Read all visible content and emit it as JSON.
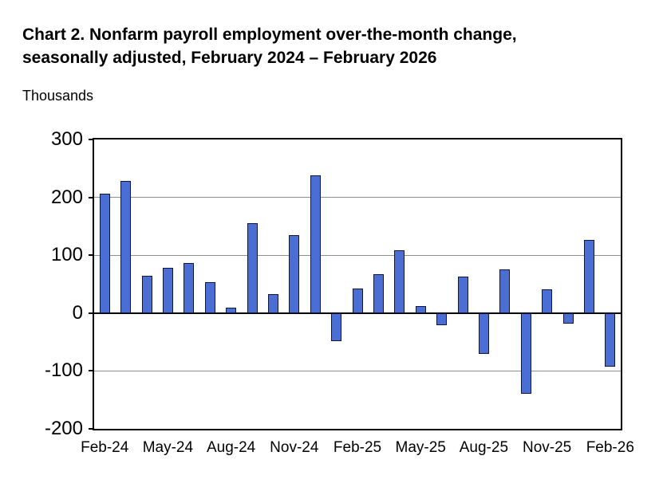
{
  "page": {
    "background_color": "#ffffff"
  },
  "chart_data": {
    "type": "bar",
    "title": "Chart 2. Nonfarm payroll employment over-the-month change, seasonally adjusted, February 2024 – February 2026",
    "title_lines": [
      "Chart 2. Nonfarm payroll employment over-the-month change,",
      "seasonally adjusted, February 2024 – February 2026"
    ],
    "ylabel": "Thousands",
    "xlabel": "",
    "ylim": [
      -200,
      300
    ],
    "yticks": [
      300,
      200,
      100,
      0,
      -100,
      -200
    ],
    "x_tick_step": 3,
    "x_tick_labels_shown": [
      "Feb-24",
      "May-24",
      "Aug-24",
      "Nov-24",
      "Feb-25",
      "May-25",
      "Aug-25",
      "Nov-25",
      "Feb-26"
    ],
    "categories": [
      "Feb-24",
      "Mar-24",
      "Apr-24",
      "May-24",
      "Jun-24",
      "Jul-24",
      "Aug-24",
      "Sep-24",
      "Oct-24",
      "Nov-24",
      "Dec-24",
      "Jan-25",
      "Feb-25",
      "Mar-25",
      "Apr-25",
      "May-25",
      "Jun-25",
      "Jul-25",
      "Aug-25",
      "Sep-25",
      "Oct-25",
      "Nov-25",
      "Dec-25",
      "Jan-26",
      "Feb-26"
    ],
    "values": [
      206,
      228,
      64,
      78,
      87,
      53,
      9,
      156,
      33,
      135,
      238,
      -48,
      43,
      67,
      108,
      12,
      -21,
      63,
      -70,
      76,
      -140,
      41,
      -18,
      126,
      -92
    ],
    "grid": true,
    "legend": false,
    "bar_color": "#4a6ed3",
    "bar_border_color": "#10173a",
    "gridline_color": "#909090",
    "axis_color": "#000000"
  }
}
